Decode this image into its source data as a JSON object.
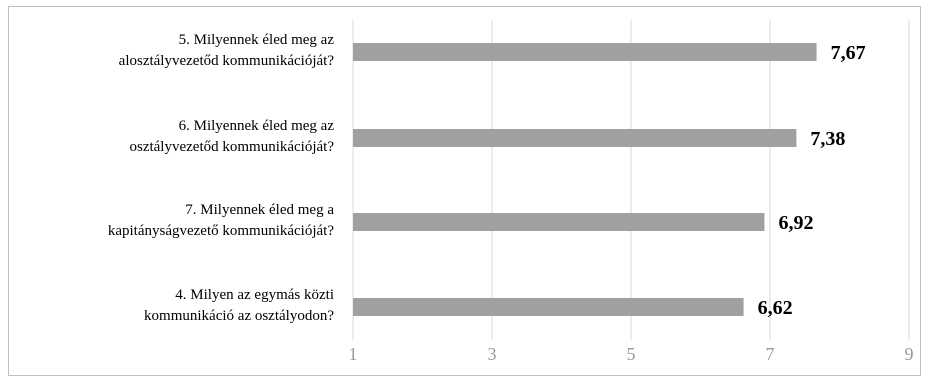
{
  "chart_data": {
    "type": "bar",
    "orientation": "horizontal",
    "categories": [
      [
        "5. Milyennek éled meg az",
        "alosztályvezetőd kommunikációját?"
      ],
      [
        "6. Milyennek éled meg az",
        "osztályvezetőd kommunikációját?"
      ],
      [
        "7. Milyennek éled meg a",
        "kapitányságvezető kommunikációját?"
      ],
      [
        "4. Milyen az egymás közti",
        "kommunikáció az osztályodon?"
      ]
    ],
    "values": [
      7.67,
      7.38,
      6.92,
      6.62
    ],
    "value_labels": [
      "7,67",
      "7,38",
      "6,92",
      "6,62"
    ],
    "xlim": [
      1,
      9
    ],
    "xticks": [
      1,
      3,
      5,
      7,
      9
    ],
    "xtick_labels": [
      "1",
      "3",
      "5",
      "7",
      "9"
    ],
    "grid": true,
    "bar_color": "#a0a0a0",
    "title": "",
    "xlabel": "",
    "ylabel": ""
  }
}
